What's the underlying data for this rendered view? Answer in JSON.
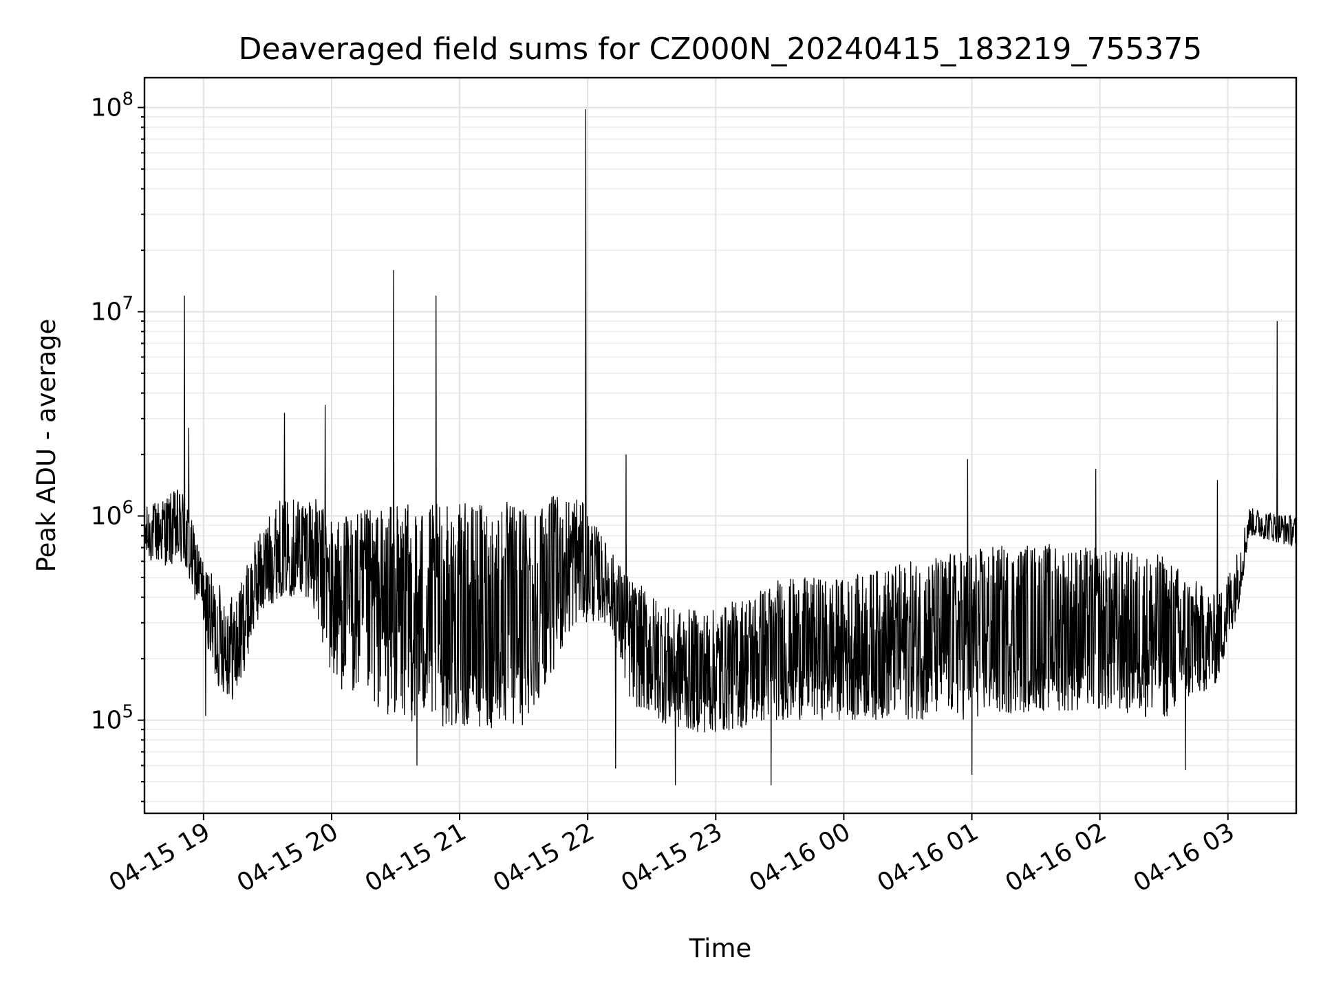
{
  "chart_data": {
    "type": "line",
    "title": "Deaveraged field sums for CZ000N_20240415_183219_755375",
    "xlabel": "Time",
    "ylabel": "Peak ADU - average",
    "yscale": "log",
    "ylim": [
      35000,
      140000000
    ],
    "xlim": [
      "2024-04-15 18:32:19",
      "2024-04-16 03:32:00"
    ],
    "grid": true,
    "legend": "none",
    "line_color": "#000000",
    "x_ticks": [
      {
        "value": "2024-04-15 19:00",
        "label": "04-15 19"
      },
      {
        "value": "2024-04-15 20:00",
        "label": "04-15 20"
      },
      {
        "value": "2024-04-15 21:00",
        "label": "04-15 21"
      },
      {
        "value": "2024-04-15 22:00",
        "label": "04-15 22"
      },
      {
        "value": "2024-04-15 23:00",
        "label": "04-15 23"
      },
      {
        "value": "2024-04-16 00:00",
        "label": "04-16 00"
      },
      {
        "value": "2024-04-16 01:00",
        "label": "04-16 01"
      },
      {
        "value": "2024-04-16 02:00",
        "label": "04-16 02"
      },
      {
        "value": "2024-04-16 03:00",
        "label": "04-16 03"
      }
    ],
    "y_ticks": [
      {
        "value": 100000,
        "base": "10",
        "exp": "5"
      },
      {
        "value": 1000000,
        "base": "10",
        "exp": "6"
      },
      {
        "value": 10000000,
        "base": "10",
        "exp": "7"
      },
      {
        "value": 100000000,
        "base": "10",
        "exp": "8"
      }
    ],
    "envelope": [
      {
        "x": "2024-04-15 18:32",
        "low": 600000,
        "high": 1100000
      },
      {
        "x": "2024-04-15 18:50",
        "low": 550000,
        "high": 1400000
      },
      {
        "x": "2024-04-15 19:00",
        "low": 300000,
        "high": 600000
      },
      {
        "x": "2024-04-15 19:05",
        "low": 150000,
        "high": 500000
      },
      {
        "x": "2024-04-15 19:15",
        "low": 120000,
        "high": 400000
      },
      {
        "x": "2024-04-15 19:25",
        "low": 300000,
        "high": 800000
      },
      {
        "x": "2024-04-15 19:35",
        "low": 400000,
        "high": 1200000
      },
      {
        "x": "2024-04-15 19:50",
        "low": 400000,
        "high": 1300000
      },
      {
        "x": "2024-04-15 20:00",
        "low": 150000,
        "high": 1000000
      },
      {
        "x": "2024-04-15 20:30",
        "low": 100000,
        "high": 1150000
      },
      {
        "x": "2024-04-15 21:00",
        "low": 90000,
        "high": 1150000
      },
      {
        "x": "2024-04-15 21:30",
        "low": 90000,
        "high": 1200000
      },
      {
        "x": "2024-04-15 21:55",
        "low": 300000,
        "high": 1300000
      },
      {
        "x": "2024-04-15 22:10",
        "low": 300000,
        "high": 700000
      },
      {
        "x": "2024-04-15 22:20",
        "low": 120000,
        "high": 500000
      },
      {
        "x": "2024-04-15 22:40",
        "low": 90000,
        "high": 350000
      },
      {
        "x": "2024-04-15 23:00",
        "low": 85000,
        "high": 350000
      },
      {
        "x": "2024-04-15 23:30",
        "low": 100000,
        "high": 500000
      },
      {
        "x": "2024-04-16 00:00",
        "low": 100000,
        "high": 500000
      },
      {
        "x": "2024-04-16 00:30",
        "low": 100000,
        "high": 600000
      },
      {
        "x": "2024-04-16 01:00",
        "low": 100000,
        "high": 700000
      },
      {
        "x": "2024-04-16 01:30",
        "low": 110000,
        "high": 750000
      },
      {
        "x": "2024-04-16 02:00",
        "low": 110000,
        "high": 700000
      },
      {
        "x": "2024-04-16 02:30",
        "low": 100000,
        "high": 650000
      },
      {
        "x": "2024-04-16 02:55",
        "low": 150000,
        "high": 400000
      },
      {
        "x": "2024-04-16 03:05",
        "low": 350000,
        "high": 700000
      },
      {
        "x": "2024-04-16 03:10",
        "low": 800000,
        "high": 1100000
      },
      {
        "x": "2024-04-16 03:32",
        "low": 700000,
        "high": 1000000
      }
    ],
    "spikes": [
      {
        "x": "2024-04-15 18:51",
        "y": 12000000
      },
      {
        "x": "2024-04-15 18:53",
        "y": 2700000
      },
      {
        "x": "2024-04-15 19:38",
        "y": 3200000
      },
      {
        "x": "2024-04-15 19:57",
        "y": 3500000
      },
      {
        "x": "2024-04-15 20:29",
        "y": 16000000
      },
      {
        "x": "2024-04-15 20:49",
        "y": 12000000
      },
      {
        "x": "2024-04-15 21:59",
        "y": 98000000
      },
      {
        "x": "2024-04-15 22:18",
        "y": 2000000
      },
      {
        "x": "2024-04-16 00:58",
        "y": 1900000
      },
      {
        "x": "2024-04-16 01:58",
        "y": 1700000
      },
      {
        "x": "2024-04-16 02:55",
        "y": 1500000
      },
      {
        "x": "2024-04-16 03:23",
        "y": 9000000
      }
    ],
    "dips": [
      {
        "x": "2024-04-15 19:01",
        "y": 105000
      },
      {
        "x": "2024-04-15 20:40",
        "y": 60000
      },
      {
        "x": "2024-04-15 22:13",
        "y": 58000
      },
      {
        "x": "2024-04-15 22:41",
        "y": 48000
      },
      {
        "x": "2024-04-15 23:26",
        "y": 48000
      },
      {
        "x": "2024-04-16 01:00",
        "y": 54000
      },
      {
        "x": "2024-04-16 02:40",
        "y": 57000
      }
    ]
  }
}
